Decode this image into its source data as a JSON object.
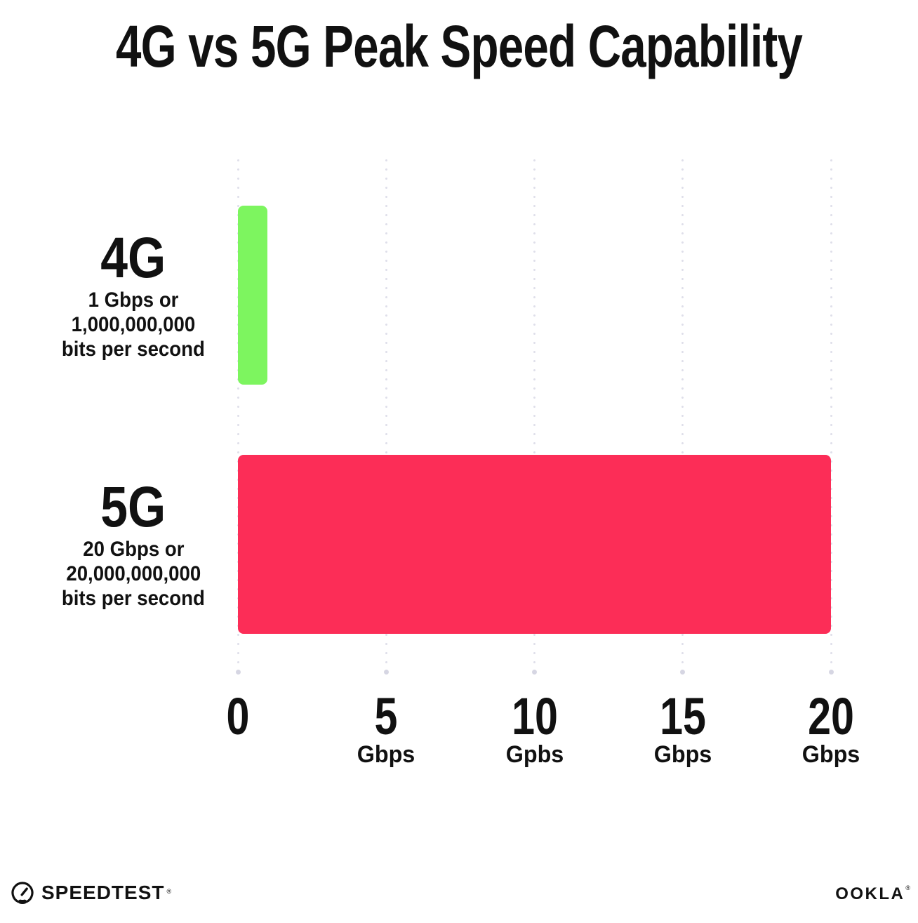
{
  "title": "4G vs 5G Peak Speed Capability",
  "chart_data": {
    "type": "bar",
    "orientation": "horizontal",
    "title": "4G vs 5G Peak Speed Capability",
    "categories": [
      "4G",
      "5G"
    ],
    "values": [
      1,
      20
    ],
    "unit": "Gbps",
    "xlim": [
      0,
      20
    ],
    "grid": "dotted-vertical",
    "legend": "none",
    "x_axis_ticks": [
      {
        "value": 0,
        "label": "0",
        "unit": ""
      },
      {
        "value": 5,
        "label": "5",
        "unit": "Gbps"
      },
      {
        "value": 10,
        "label": "10",
        "unit": "Gpbs"
      },
      {
        "value": 15,
        "label": "15",
        "unit": "Gbps"
      },
      {
        "value": 20,
        "label": "20",
        "unit": "Gbps"
      }
    ],
    "series": [
      {
        "name": "4G",
        "value": 1,
        "color": "#7DF55F",
        "sublabel_lines": [
          "1 Gbps or",
          "1,000,000,000",
          "bits per second"
        ]
      },
      {
        "name": "5G",
        "value": 20,
        "color": "#FC2D57",
        "sublabel_lines": [
          "20 Gbps or",
          "20,000,000,000",
          "bits per second"
        ]
      }
    ]
  },
  "footer": {
    "speedtest": {
      "label": "SPEEDTEST",
      "trademark": "®"
    },
    "ookla": {
      "label": "OOKLA",
      "trademark": "®"
    }
  },
  "colors": {
    "text": "#111111",
    "bar_4g": "#7DF55F",
    "bar_5g": "#FC2D57",
    "gridline": "#DFDFEA",
    "background": "#FFFFFF"
  }
}
